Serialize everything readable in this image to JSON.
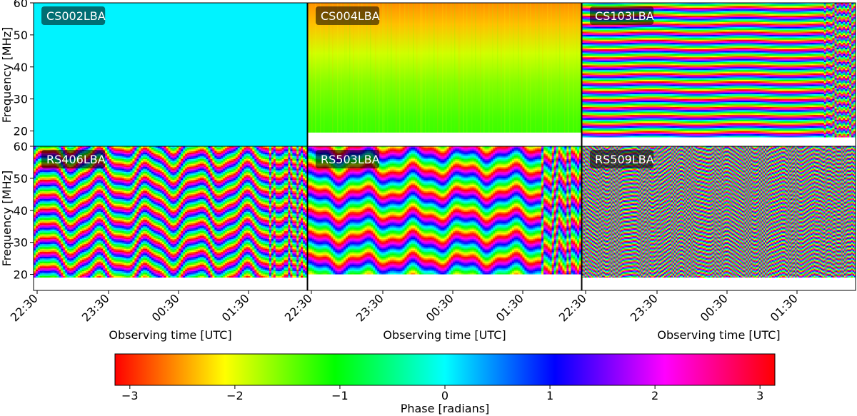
{
  "figure": {
    "colorbar": {
      "label": "Phase [radians]",
      "ticks": [
        -3,
        -2,
        -1,
        0,
        1,
        2,
        3
      ],
      "tick_labels": [
        "−3",
        "−2",
        "−1",
        "0",
        "1",
        "2",
        "3"
      ],
      "range": [
        -3.14159,
        3.14159
      ],
      "colormap": "hsv",
      "colors": [
        "#ff0000",
        "#ffff00",
        "#00ff00",
        "#00ffff",
        "#0000ff",
        "#ff00ff",
        "#ff0000"
      ]
    }
  },
  "chart_data": [
    {
      "type": "heatmap",
      "panel": "CS002LBA",
      "pattern": "uniform",
      "xlabel": "",
      "ylabel": "Frequency [MHz]",
      "x_tick_labels": [],
      "y_ticks": [
        20,
        30,
        40,
        50,
        60
      ],
      "ylim": [
        15,
        60
      ],
      "z_value": 0.05
    },
    {
      "type": "heatmap",
      "panel": "CS004LBA",
      "pattern": "smooth-gradient",
      "xlabel": "",
      "ylabel": "",
      "x_tick_labels": [],
      "y_ticks": [],
      "ylim": [
        15,
        60
      ],
      "z_range": [
        -2.6,
        -1.2
      ],
      "flagged_below_mhz": 19.5
    },
    {
      "type": "heatmap",
      "panel": "CS103LBA",
      "pattern": "horizontal-fringes",
      "xlabel": "",
      "ylabel": "",
      "x_tick_labels": [],
      "y_ticks": [],
      "ylim": [
        15,
        60
      ],
      "fringe_period_mhz": 2.6,
      "flagged_below_mhz": 18
    },
    {
      "type": "heatmap",
      "panel": "RS406LBA",
      "pattern": "wavy-fringes",
      "xlabel": "Observing time [UTC]",
      "ylabel": "Frequency [MHz]",
      "x_tick_labels": [
        "22:30",
        "23:30",
        "00:30",
        "01:30"
      ],
      "y_ticks": [
        20,
        30,
        40,
        50,
        60
      ],
      "ylim": [
        15,
        60
      ],
      "fringe_period_mhz": 4.5,
      "flagged_below_mhz": 19
    },
    {
      "type": "heatmap",
      "panel": "RS503LBA",
      "pattern": "wavy-fringes",
      "xlabel": "Observing time [UTC]",
      "ylabel": "",
      "x_tick_labels": [
        "22:30",
        "23:30",
        "00:30",
        "01:30"
      ],
      "y_ticks": [],
      "ylim": [
        15,
        60
      ],
      "fringe_period_mhz": 7.0,
      "flagged_below_mhz": 20
    },
    {
      "type": "heatmap",
      "panel": "RS509LBA",
      "pattern": "dense-wavy-fringes",
      "xlabel": "Observing time [UTC]",
      "ylabel": "",
      "x_tick_labels": [
        "22:30",
        "23:30",
        "00:30",
        "01:30"
      ],
      "y_ticks": [],
      "ylim": [
        15,
        60
      ],
      "fringe_period_mhz": 1.3,
      "flagged_below_mhz": 19
    }
  ]
}
